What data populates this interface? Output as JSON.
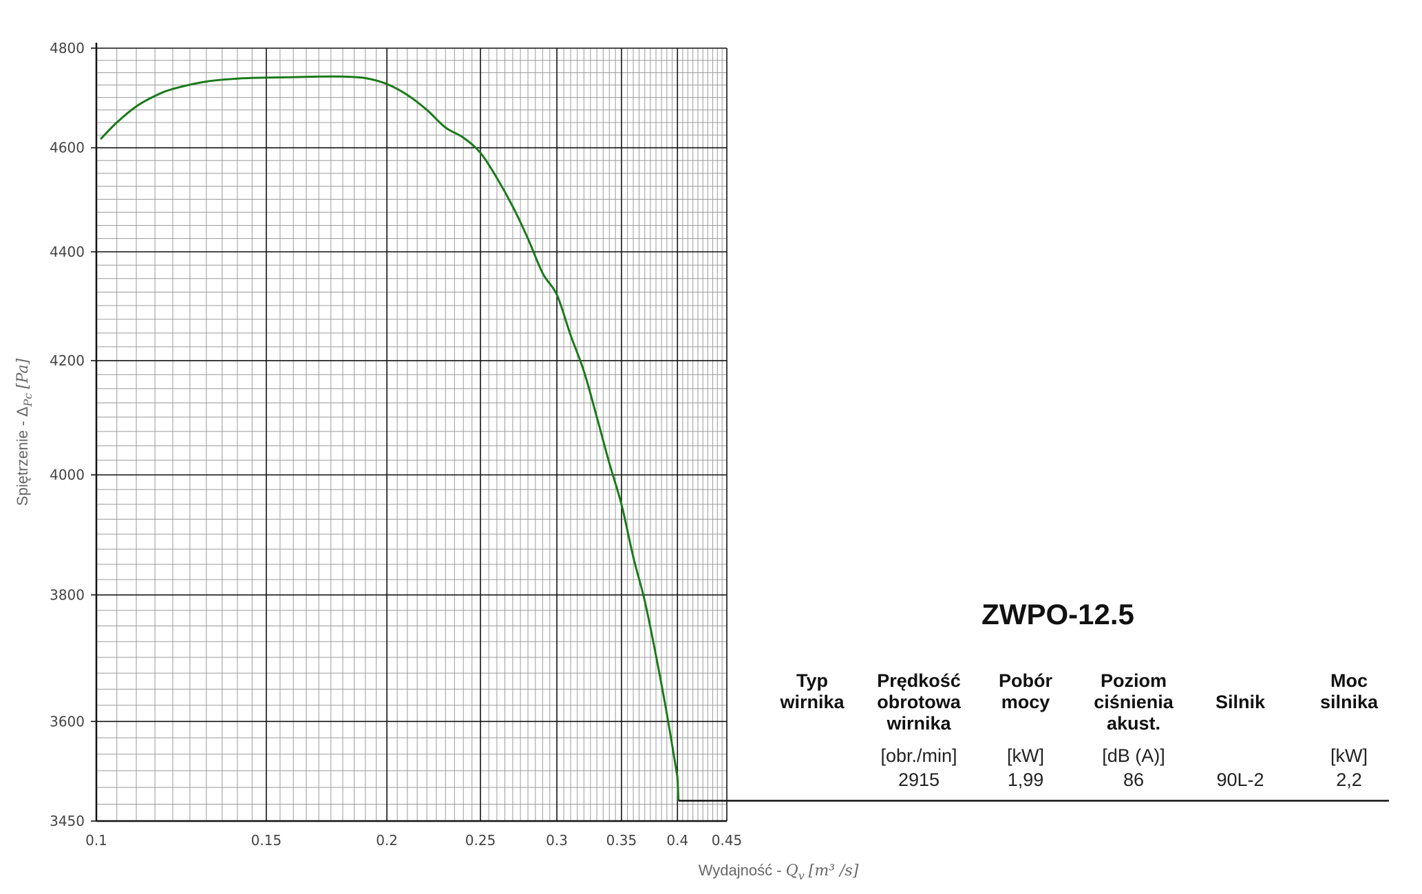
{
  "chart_data": {
    "type": "line",
    "xlabel_text": "Wydajność - ",
    "xlabel_symbol": "Q",
    "xlabel_sub": "v",
    "xlabel_unit": "[m³ /s]",
    "ylabel_text": "Spiętrzenie - Δ",
    "ylabel_sub": "Pc",
    "ylabel_unit": "[Pa]",
    "x_scale": "log",
    "y_scale": "log",
    "xlim": [
      0.1,
      0.45
    ],
    "ylim": [
      3450,
      4800
    ],
    "x_ticks": [
      0.1,
      0.15,
      0.2,
      0.25,
      0.3,
      0.35,
      0.4,
      0.45
    ],
    "x_tick_labels": [
      "0.1",
      "0.15",
      "0.2",
      "0.25",
      "0.3",
      "0.35",
      "0.4",
      "0.45"
    ],
    "y_ticks": [
      3450,
      3600,
      3800,
      4000,
      4200,
      4400,
      4600,
      4800
    ],
    "y_tick_labels": [
      "3450",
      "3600",
      "3800",
      "4000",
      "4200",
      "4400",
      "4600",
      "4800"
    ],
    "grid": true,
    "series": [
      {
        "color": "#1a7a1a",
        "x": [
          0.101,
          0.105,
          0.11,
          0.115,
          0.12,
          0.13,
          0.14,
          0.15,
          0.16,
          0.17,
          0.18,
          0.19,
          0.2,
          0.21,
          0.22,
          0.23,
          0.24,
          0.25,
          0.26,
          0.27,
          0.28,
          0.29,
          0.3,
          0.31,
          0.32,
          0.33,
          0.34,
          0.35,
          0.36,
          0.37,
          0.38,
          0.39,
          0.4
        ],
        "y": [
          4617,
          4650,
          4682,
          4703,
          4717,
          4732,
          4738,
          4740,
          4741,
          4742,
          4742,
          4739,
          4727,
          4705,
          4675,
          4640,
          4620,
          4590,
          4541,
          4486,
          4425,
          4360,
          4320,
          4246,
          4181,
          4100,
          4020,
          3950,
          3862,
          3790,
          3703,
          3612,
          3515
        ]
      }
    ],
    "operating_line": {
      "x": [
        0.401,
        0.45
      ],
      "y": [
        3480,
        3480
      ]
    }
  },
  "model": {
    "title": "ZWPO-12.5"
  },
  "spec_table": {
    "headers": [
      [
        "Typ",
        "wirnika"
      ],
      [
        "Prędkość",
        "obrotowa",
        "wirnika"
      ],
      [
        "Pobór",
        "mocy"
      ],
      [
        "Poziom",
        "ciśnienia",
        "akust."
      ],
      [
        "Silnik"
      ],
      [
        "Moc",
        "silnika"
      ]
    ],
    "units": [
      "",
      "[obr./min]",
      "[kW]",
      "[dB (A)]",
      "",
      "[kW]"
    ],
    "values": [
      "",
      "2915",
      "1,99",
      "86",
      "90L-2",
      "2,2"
    ]
  },
  "colors": {
    "curve": "#1a7a1a",
    "major_grid": "#111111",
    "minor_grid": "#9a9a9a"
  }
}
